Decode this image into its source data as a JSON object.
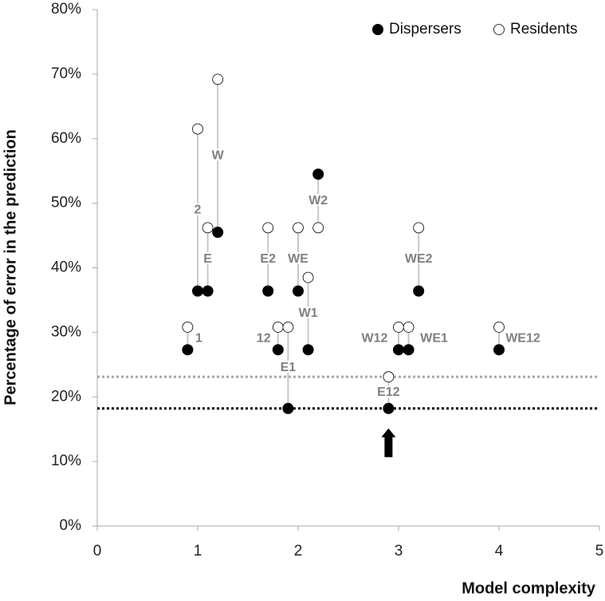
{
  "chart_data": {
    "type": "scatter",
    "x_label": "Model complexity",
    "y_label": "Percentage of error in the prediction",
    "x": [
      0.9,
      1.0,
      1.1,
      1.2,
      1.7,
      1.8,
      1.9,
      2.0,
      2.1,
      2.2,
      2.9,
      3.0,
      3.1,
      3.2,
      4.0
    ],
    "point_labels": [
      "1",
      "2",
      "E",
      "W",
      "E2",
      "12",
      "E1",
      "WE",
      "W1",
      "W2",
      "E12",
      "W12",
      "WE1",
      "WE2",
      "WE12"
    ],
    "series": [
      {
        "name": "Dispersers",
        "color": "#000000",
        "filled": true,
        "values": [
          27.3,
          36.4,
          36.4,
          45.5,
          36.4,
          27.3,
          18.2,
          36.4,
          27.3,
          54.5,
          18.2,
          27.3,
          27.3,
          36.4,
          27.3
        ]
      },
      {
        "name": "Residents",
        "color": "#000000",
        "filled": false,
        "values": [
          30.8,
          61.5,
          46.2,
          69.2,
          46.2,
          30.8,
          30.8,
          46.2,
          38.5,
          46.2,
          23.1,
          30.8,
          30.8,
          46.2,
          30.8
        ]
      }
    ],
    "connector_color": "#c8c8c8",
    "label_color": "#808080",
    "reference_lines": [
      {
        "value": 18.2,
        "color": "#000000"
      },
      {
        "value": 23.1,
        "color": "#a6a6a6"
      }
    ],
    "xlim": [
      0,
      5
    ],
    "xticks": [
      0,
      1,
      2,
      3,
      4,
      5
    ],
    "ylim": [
      0,
      80
    ],
    "yticks": [
      {
        "value": 0,
        "label": "0%"
      },
      {
        "value": 10,
        "label": "10%"
      },
      {
        "value": 20,
        "label": "20%"
      },
      {
        "value": 30,
        "label": "30%"
      },
      {
        "value": 40,
        "label": "40%"
      },
      {
        "value": 50,
        "label": "50%"
      },
      {
        "value": 60,
        "label": "60%"
      },
      {
        "value": 70,
        "label": "70%"
      },
      {
        "value": 80,
        "label": "80%"
      }
    ],
    "grid": false,
    "legend": "upper right"
  }
}
